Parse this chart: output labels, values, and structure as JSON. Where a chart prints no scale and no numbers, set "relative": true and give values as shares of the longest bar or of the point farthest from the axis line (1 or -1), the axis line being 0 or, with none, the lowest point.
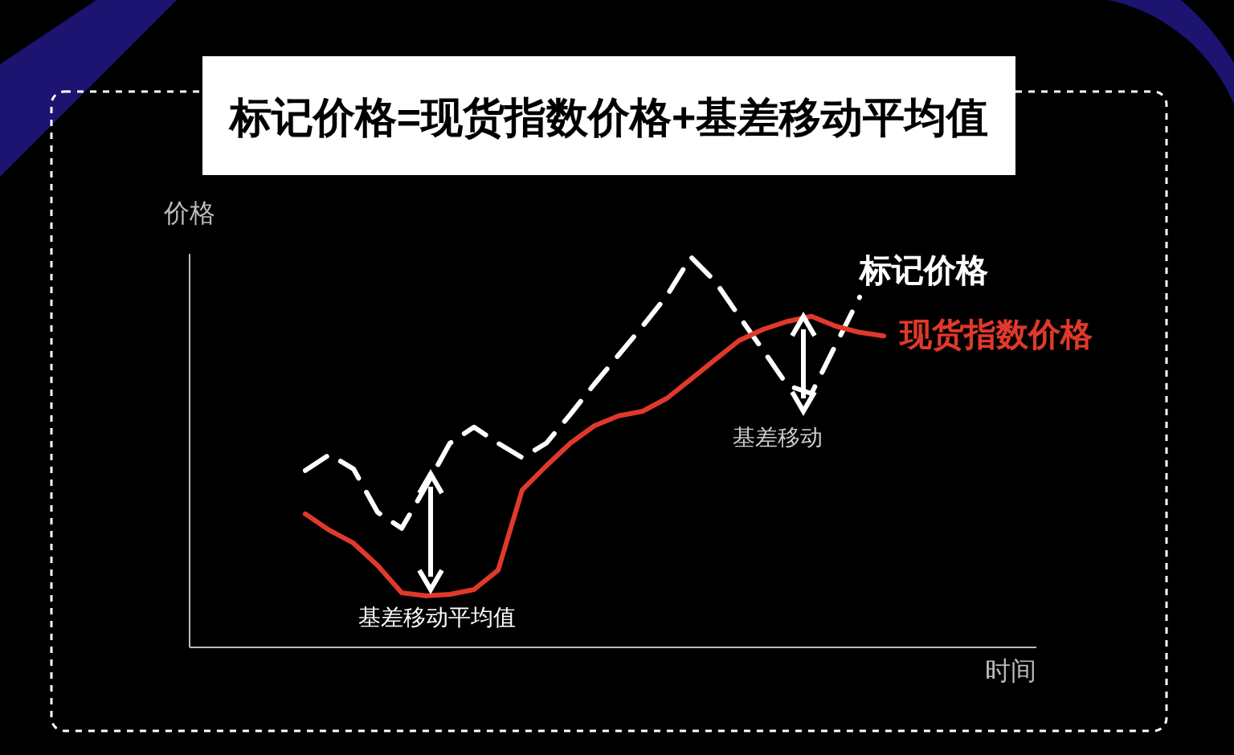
{
  "chart_data": {
    "type": "line",
    "relative": true,
    "title": "标记价格=现货指数价格+基差移动平均值",
    "xlabel": "时间",
    "ylabel": "价格",
    "legend": false,
    "marker": "none",
    "categories": [
      null,
      null,
      null,
      null,
      null,
      null,
      null,
      null,
      null,
      null,
      null,
      null,
      null,
      null,
      null,
      null,
      null,
      null,
      null,
      null,
      null,
      null,
      null,
      null,
      null
    ],
    "series": [
      {
        "name": "标记价格",
        "color": "#ffffff",
        "line_style": "dashed",
        "values": [
          0.453,
          0.494,
          0.457,
          0.346,
          0.305,
          0.412,
          0.523,
          0.564,
          0.523,
          0.486,
          0.523,
          0.597,
          0.675,
          0.749,
          0.823,
          0.901,
          1,
          0.938,
          0.848,
          0.761,
          0.671,
          0.65,
          0.774,
          0.897,
          null
        ]
      },
      {
        "name": "现货指数价格",
        "color": "#e0392b",
        "line_style": "solid",
        "values": [
          0.342,
          0.3,
          0.267,
          0.21,
          0.14,
          0.132,
          0.136,
          0.148,
          0.198,
          0.403,
          0.465,
          0.523,
          0.568,
          0.593,
          0.605,
          0.638,
          0.687,
          0.737,
          0.786,
          0.815,
          0.835,
          0.848,
          0.823,
          0.807,
          0.798
        ]
      }
    ],
    "annotations": [
      "基差移动平均值",
      "基差移动"
    ]
  }
}
